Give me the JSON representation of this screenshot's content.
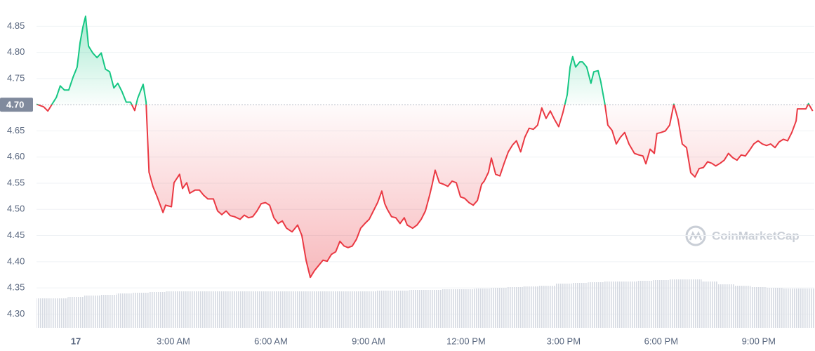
{
  "chart_data": {
    "type": "line",
    "x": [
      -1.21,
      -0.99,
      -0.86,
      -0.73,
      -0.6,
      -0.48,
      -0.35,
      -0.22,
      -0.09,
      0.04,
      0.13,
      0.22,
      0.3,
      0.39,
      0.52,
      0.65,
      0.78,
      0.91,
      1.04,
      1.17,
      1.29,
      1.42,
      1.55,
      1.68,
      1.81,
      1.9,
      2.07,
      2.16,
      2.25,
      2.37,
      2.5,
      2.68,
      2.76,
      2.94,
      3.02,
      3.19,
      3.28,
      3.41,
      3.5,
      3.67,
      3.8,
      3.93,
      4.06,
      4.23,
      4.36,
      4.49,
      4.62,
      4.75,
      4.88,
      5.05,
      5.18,
      5.31,
      5.44,
      5.57,
      5.7,
      5.83,
      5.96,
      6.09,
      6.22,
      6.35,
      6.48,
      6.65,
      6.82,
      6.95,
      7.08,
      7.21,
      7.34,
      7.47,
      7.6,
      7.73,
      7.86,
      7.99,
      8.12,
      8.25,
      8.37,
      8.5,
      8.63,
      8.76,
      8.89,
      9.02,
      9.15,
      9.28,
      9.41,
      9.5,
      9.58,
      9.71,
      9.84,
      9.97,
      10.1,
      10.19,
      10.36,
      10.49,
      10.62,
      10.75,
      10.88,
      10.96,
      11.05,
      11.18,
      11.31,
      11.44,
      11.57,
      11.7,
      11.83,
      11.96,
      12.09,
      12.22,
      12.35,
      12.48,
      12.56,
      12.69,
      12.78,
      12.91,
      13.04,
      13.17,
      13.3,
      13.43,
      13.55,
      13.68,
      13.81,
      13.94,
      14.07,
      14.2,
      14.33,
      14.46,
      14.59,
      14.72,
      14.85,
      14.98,
      15.11,
      15.2,
      15.28,
      15.37,
      15.5,
      15.58,
      15.71,
      15.84,
      15.93,
      16.06,
      16.14,
      16.27,
      16.36,
      16.49,
      16.62,
      16.75,
      16.88,
      17.01,
      17.18,
      17.31,
      17.44,
      17.53,
      17.66,
      17.79,
      17.87,
      18.0,
      18.13,
      18.26,
      18.39,
      18.52,
      18.65,
      18.78,
      18.91,
      19.04,
      19.17,
      19.3,
      19.43,
      19.56,
      19.68,
      19.81,
      19.94,
      20.07,
      20.2,
      20.33,
      20.46,
      20.59,
      20.72,
      20.85,
      20.98,
      21.11,
      21.24,
      21.37,
      21.5,
      21.63,
      21.76,
      21.89,
      22.02,
      22.15,
      22.19,
      22.32,
      22.45,
      22.53,
      22.66
    ],
    "values": [
      4.701,
      4.696,
      4.688,
      4.701,
      4.714,
      4.736,
      4.728,
      4.728,
      4.752,
      4.772,
      4.819,
      4.849,
      4.869,
      4.812,
      4.799,
      4.79,
      4.799,
      4.768,
      4.763,
      4.732,
      4.741,
      4.725,
      4.705,
      4.705,
      4.689,
      4.712,
      4.739,
      4.705,
      4.571,
      4.544,
      4.524,
      4.494,
      4.508,
      4.505,
      4.551,
      4.567,
      4.54,
      4.551,
      4.531,
      4.537,
      4.537,
      4.527,
      4.52,
      4.52,
      4.497,
      4.49,
      4.497,
      4.488,
      4.486,
      4.481,
      4.489,
      4.484,
      4.486,
      4.497,
      4.511,
      4.513,
      4.508,
      4.484,
      4.473,
      4.478,
      4.464,
      4.457,
      4.47,
      4.45,
      4.403,
      4.37,
      4.383,
      4.393,
      4.403,
      4.401,
      4.414,
      4.419,
      4.439,
      4.43,
      4.427,
      4.43,
      4.443,
      4.464,
      4.473,
      4.481,
      4.497,
      4.513,
      4.535,
      4.511,
      4.5,
      4.486,
      4.484,
      4.473,
      4.484,
      4.47,
      4.464,
      4.47,
      4.481,
      4.497,
      4.527,
      4.548,
      4.575,
      4.551,
      4.548,
      4.544,
      4.554,
      4.551,
      4.524,
      4.521,
      4.513,
      4.508,
      4.517,
      4.548,
      4.554,
      4.571,
      4.598,
      4.567,
      4.564,
      4.588,
      4.61,
      4.623,
      4.631,
      4.61,
      4.638,
      4.655,
      4.653,
      4.661,
      4.694,
      4.674,
      4.688,
      4.672,
      4.658,
      4.685,
      4.719,
      4.772,
      4.792,
      4.772,
      4.782,
      4.782,
      4.772,
      4.741,
      4.763,
      4.765,
      4.745,
      4.701,
      4.661,
      4.651,
      4.625,
      4.638,
      4.647,
      4.625,
      4.607,
      4.604,
      4.602,
      4.587,
      4.615,
      4.607,
      4.645,
      4.647,
      4.65,
      4.661,
      4.701,
      4.672,
      4.625,
      4.618,
      4.57,
      4.562,
      4.578,
      4.58,
      4.591,
      4.588,
      4.583,
      4.588,
      4.594,
      4.607,
      4.599,
      4.594,
      4.604,
      4.602,
      4.613,
      4.625,
      4.631,
      4.625,
      4.622,
      4.625,
      4.618,
      4.629,
      4.634,
      4.631,
      4.647,
      4.669,
      4.692,
      4.692,
      4.692,
      4.702,
      4.688
    ],
    "colors": {
      "above": "#16c784",
      "below": "#ea3943"
    },
    "reference": {
      "value": 4.7,
      "label": "4.70"
    },
    "xlim": [
      -1.21,
      22.71
    ],
    "ylim": [
      4.275,
      4.88
    ],
    "yticks": [
      {
        "value": 4.3,
        "label": "4.30"
      },
      4.35,
      {
        "value": 4.4,
        "label": "4.40"
      },
      4.45,
      {
        "value": 4.5,
        "label": "4.50"
      },
      4.55,
      {
        "value": 4.6,
        "label": "4.60"
      },
      4.65,
      4.75,
      {
        "value": 4.8,
        "label": "4.80"
      },
      4.85
    ],
    "xticks": [
      {
        "value": 0,
        "label": "17"
      },
      {
        "value": 3,
        "label": "3:00 AM"
      },
      {
        "value": 6,
        "label": "6:00 AM"
      },
      {
        "value": 9,
        "label": "9:00 AM"
      },
      {
        "value": 12,
        "label": "12:00 PM"
      },
      {
        "value": 15,
        "label": "3:00 PM"
      },
      {
        "value": 18,
        "label": "6:00 PM"
      },
      {
        "value": 21,
        "label": "9:00 PM"
      }
    ],
    "grid": true,
    "volume": {
      "x": [
        -1.0,
        -0.5,
        0,
        0.5,
        1.0,
        1.5,
        2.0,
        2.5,
        3.0,
        3.5,
        4.0,
        4.5,
        5.0,
        5.5,
        6.0,
        6.5,
        7.0,
        7.5,
        8.0,
        8.5,
        9.0,
        9.5,
        10.0,
        10.5,
        11.0,
        11.5,
        12.0,
        12.5,
        13.0,
        13.5,
        14.0,
        14.5,
        15.0,
        15.5,
        16.0,
        16.5,
        17.0,
        17.5,
        18.0,
        18.5,
        19.0,
        19.5,
        20.0,
        20.5,
        21.0,
        21.5,
        22.0,
        22.5
      ],
      "values": [
        42,
        42,
        44,
        46,
        47,
        49,
        50,
        51,
        52,
        52,
        52,
        52,
        52,
        52,
        52,
        52,
        52,
        52,
        52,
        52,
        52,
        53,
        53,
        54,
        54,
        55,
        55,
        56,
        57,
        58,
        59,
        60,
        63,
        64,
        65,
        66,
        66,
        67,
        68,
        69,
        69,
        66,
        62,
        60,
        58,
        57,
        56,
        56
      ]
    },
    "watermark": "CoinMarketCap"
  }
}
